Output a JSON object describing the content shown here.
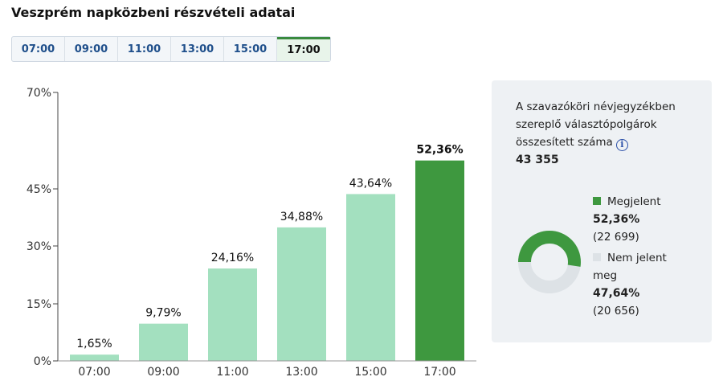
{
  "title": "Veszprém napközbeni részvételi adatai",
  "tabs": [
    {
      "label": "07:00",
      "active": false
    },
    {
      "label": "09:00",
      "active": false
    },
    {
      "label": "11:00",
      "active": false
    },
    {
      "label": "13:00",
      "active": false
    },
    {
      "label": "15:00",
      "active": false
    },
    {
      "label": "17:00",
      "active": true
    }
  ],
  "colors": {
    "bar": "#a3e0bf",
    "bar_active": "#3e983f",
    "donut_remaining": "#dde2e6",
    "tab_accent": "#3a8a3e"
  },
  "chart_data": {
    "type": "bar",
    "categories": [
      "07:00",
      "09:00",
      "11:00",
      "13:00",
      "15:00",
      "17:00"
    ],
    "values": [
      1.65,
      9.79,
      24.16,
      34.88,
      43.64,
      52.36
    ],
    "data_labels": [
      "1,65%",
      "9,79%",
      "24,16%",
      "34,88%",
      "43,64%",
      "52,36%"
    ],
    "highlighted_index": 5,
    "ylim": [
      0,
      70
    ],
    "yticks": [
      0,
      15,
      30,
      45,
      70
    ],
    "ytick_labels": [
      "0%",
      "15%",
      "30%",
      "45%",
      "70%"
    ],
    "grid": false
  },
  "info": {
    "label": "A szavazóköri névjegyzékben szereplő választópolgárok összesített száma",
    "icon": "info-icon",
    "total": "43 355",
    "appeared": {
      "label": "Megjelent",
      "percent": "52,36%",
      "count": "(22 699)",
      "fraction": 0.5236
    },
    "not_appeared": {
      "label": "Nem jelent meg",
      "percent": "47,64%",
      "count": "(20 656)"
    }
  }
}
